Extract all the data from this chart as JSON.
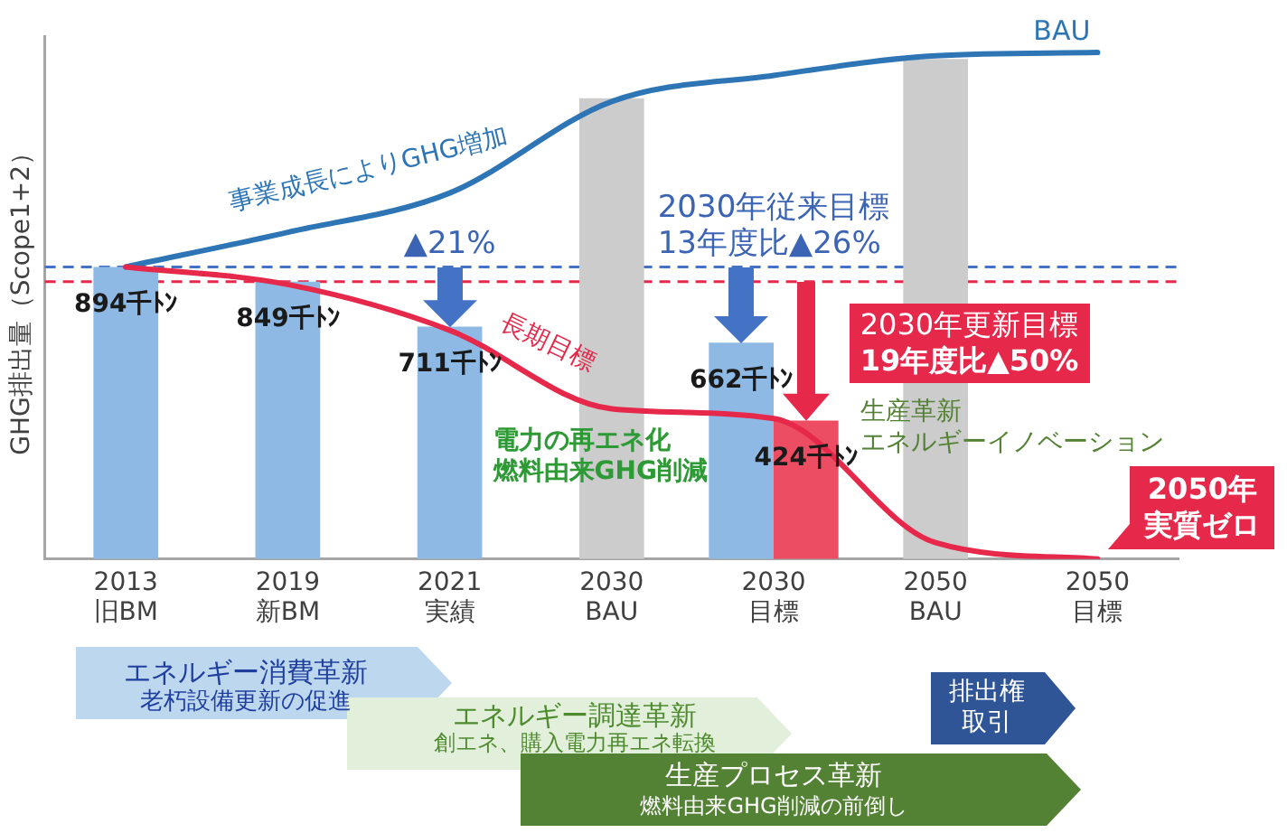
{
  "chart_data": {
    "type": "bar",
    "ylabel": "GHG排出量（Scope1+2）",
    "categories": [
      "2013\n旧BM",
      "2019\n新BM",
      "2021\n実績",
      "2030\nBAU",
      "2030\n目標",
      "2050\nBAU",
      "2050\n目標"
    ],
    "series": [
      {
        "color": "#8db9e4",
        "values": [
          894,
          849,
          711,
          null,
          662,
          null,
          null
        ],
        "value_labels": [
          "894千ﾄﾝ",
          "849千ﾄﾝ",
          "711千ﾄﾝ",
          null,
          "662千ﾄﾝ",
          null,
          null
        ]
      },
      {
        "color": "#cccccc",
        "values": [
          null,
          null,
          null,
          1410,
          null,
          1530,
          null
        ]
      },
      {
        "color": "#ec4d63",
        "values": [
          null,
          null,
          null,
          null,
          424,
          null,
          null
        ],
        "value_labels": [
          null,
          null,
          null,
          null,
          "424千ﾄﾝ",
          null,
          null
        ]
      },
      {
        "type": "line",
        "name": "BAU",
        "color": "#2e75b6",
        "values": [
          894,
          1000,
          1120,
          1400,
          1480,
          1540,
          1550
        ]
      },
      {
        "type": "line",
        "name": "長期目標",
        "color": "#e6284a",
        "values": [
          894,
          840,
          700,
          460,
          430,
          50,
          0
        ]
      }
    ],
    "ylim": [
      0,
      1600
    ],
    "tick_labels": "x",
    "grid": false,
    "legend": false,
    "ref_lines": [
      {
        "axis": "y",
        "value": 894,
        "color": "#4472c4",
        "line_style": "dashed"
      },
      {
        "axis": "y",
        "value": 849,
        "color": "#e6284a",
        "line_style": "dashed"
      }
    ],
    "annotations": [
      "事業成長によりGHG増加",
      "▲21%",
      "2030年従来目標\n13年度比▲26%",
      "2030年更新目標\n19年度比▲50%",
      "電力の再エネ化燃料由来GHG削減",
      "生産革新エネルギーイノベーション",
      "2050年実質ゼロ",
      "エネルギー消費革新老朽設備更新の促進",
      "エネルギー調達革新創エネ、購入電力再エネ転換",
      "排出権取引",
      "生産プロセス革新燃料由来GHG削減の前倒し"
    ]
  }
}
